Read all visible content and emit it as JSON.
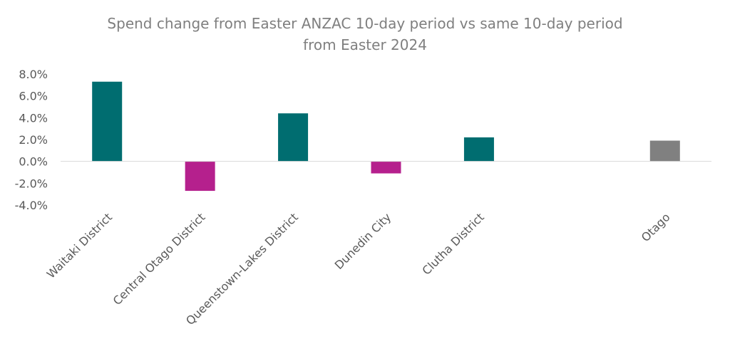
{
  "chart_data": {
    "type": "bar",
    "title_lines": [
      "Spend change from Easter ANZAC 10-day period vs same 10-day period",
      "from Easter 2024"
    ],
    "categories": [
      "Waitaki District",
      "Central Otago District",
      "Queenstown-Lakes District",
      "Dunedin City",
      "Clutha District",
      "",
      "Otago"
    ],
    "values": [
      7.3,
      -2.7,
      4.4,
      -1.1,
      2.2,
      null,
      1.9
    ],
    "bar_colors": [
      "#006d70",
      "#b5208d",
      "#006d70",
      "#b5208d",
      "#006d70",
      null,
      "#808080"
    ],
    "ylim": [
      -4.0,
      8.0
    ],
    "yticks": [
      8.0,
      6.0,
      4.0,
      2.0,
      0.0,
      -2.0,
      -4.0
    ],
    "ytick_labels": [
      "8.0%",
      "6.0%",
      "4.0%",
      "2.0%",
      "0.0%",
      "-2.0%",
      "-4.0%"
    ],
    "grid": false,
    "legend": "none"
  }
}
